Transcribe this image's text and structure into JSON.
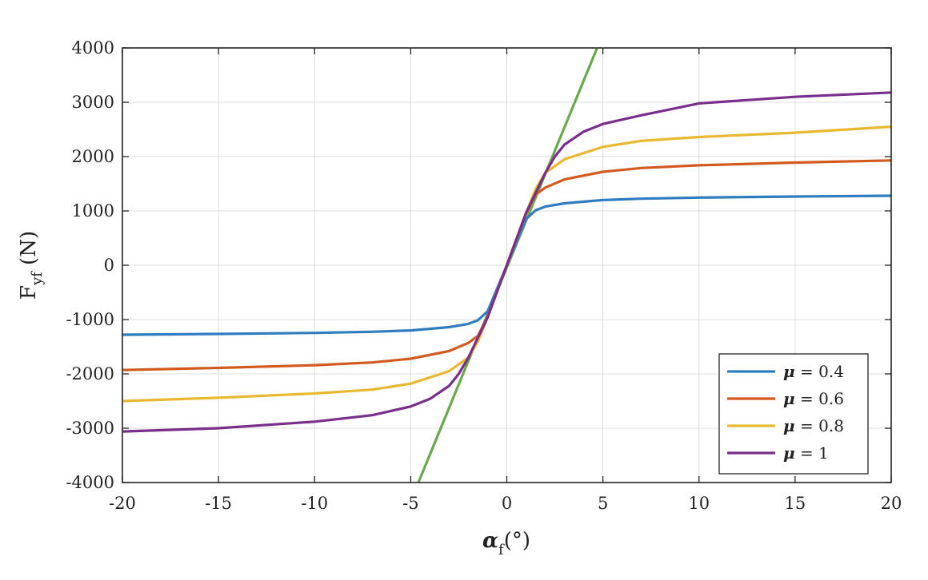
{
  "chart_data": {
    "type": "line",
    "xlabel": {
      "main": "α",
      "sub": "f",
      "unit": "(°)"
    },
    "ylabel": {
      "main": "F",
      "sub": "yf",
      "unit": " (N)"
    },
    "xlim": [
      -20,
      20
    ],
    "ylim": [
      -4000,
      4000
    ],
    "xticks": [
      -20,
      -15,
      -10,
      -5,
      0,
      5,
      10,
      15,
      20
    ],
    "yticks": [
      -4000,
      -3000,
      -2000,
      -1000,
      0,
      1000,
      2000,
      3000,
      4000
    ],
    "grid": true,
    "legend_position": "bottom-right",
    "series": [
      {
        "name": "μ = 0.4",
        "legend_symbol": "μ",
        "legend_value": " = 0.4",
        "color": "#2f7dc0",
        "x": [
          -20,
          -15,
          -10,
          -7,
          -5,
          -3,
          -2,
          -1.5,
          -1,
          0,
          1,
          1.5,
          2,
          3,
          5,
          7,
          10,
          15,
          20
        ],
        "y": [
          -1280,
          -1265,
          -1245,
          -1225,
          -1200,
          -1140,
          -1080,
          -1010,
          -850,
          0,
          850,
          1010,
          1080,
          1140,
          1200,
          1225,
          1245,
          1265,
          1280
        ]
      },
      {
        "name": "μ = 0.6",
        "legend_symbol": "μ",
        "legend_value": " = 0.6",
        "color": "#d25a1e",
        "x": [
          -20,
          -15,
          -10,
          -7,
          -5,
          -3,
          -2,
          -1.5,
          -1,
          0,
          1,
          1.5,
          2,
          3,
          5,
          7,
          10,
          15,
          20
        ],
        "y": [
          -1930,
          -1890,
          -1840,
          -1790,
          -1720,
          -1580,
          -1430,
          -1300,
          -950,
          0,
          950,
          1300,
          1430,
          1580,
          1720,
          1790,
          1840,
          1890,
          1930
        ]
      },
      {
        "name": "μ = 0.8",
        "legend_symbol": "μ",
        "legend_value": " = 0.8",
        "color": "#e8b930",
        "x": [
          -20,
          -15,
          -10,
          -7,
          -5,
          -3,
          -2,
          -1.5,
          -1,
          0,
          1,
          1.5,
          2,
          3,
          5,
          7,
          10,
          15,
          20
        ],
        "y": [
          -2500,
          -2440,
          -2360,
          -2290,
          -2180,
          -1950,
          -1700,
          -1400,
          -960,
          0,
          960,
          1400,
          1700,
          1950,
          2180,
          2290,
          2360,
          2440,
          2550
        ]
      },
      {
        "name": "μ = 1",
        "legend_symbol": "μ",
        "legend_value": " = 1",
        "color": "#7a2e8c",
        "x": [
          -20,
          -15,
          -10,
          -7,
          -5,
          -4,
          -3,
          -2.5,
          -2,
          -1,
          0,
          1,
          2,
          2.5,
          3,
          4,
          5,
          7,
          10,
          15,
          20
        ],
        "y": [
          -3060,
          -3000,
          -2880,
          -2760,
          -2600,
          -2460,
          -2220,
          -2000,
          -1700,
          -960,
          0,
          960,
          1700,
          2000,
          2220,
          2460,
          2600,
          2760,
          2980,
          3100,
          3180
        ]
      },
      {
        "name": "",
        "color": "#6aa84f",
        "in_legend": false,
        "x": [
          -4.6,
          4.7
        ],
        "y": [
          -4000,
          4000
        ]
      }
    ]
  }
}
